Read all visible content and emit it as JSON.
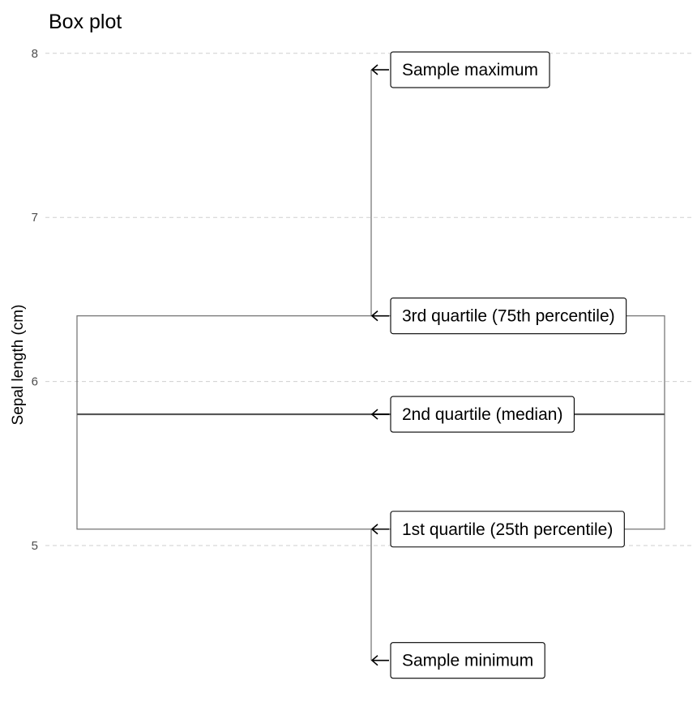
{
  "chart_data": {
    "type": "box",
    "title": "Box plot",
    "xlabel": "",
    "ylabel": "Sepal length (cm)",
    "ylim": [
      4.25,
      8.15
    ],
    "yticks": [
      "5",
      "6",
      "7",
      "8"
    ],
    "grid": "horizontal dashed",
    "legend": "none",
    "stats": {
      "min": 4.3,
      "q1": 5.1,
      "median": 5.8,
      "q3": 6.4,
      "max": 7.9
    },
    "annotations": [
      {
        "stat": "max",
        "label": "Sample maximum"
      },
      {
        "stat": "q3",
        "label": "3rd quartile (75th percentile)"
      },
      {
        "stat": "median",
        "label": "2nd quartile (median)"
      },
      {
        "stat": "q1",
        "label": "1st quartile (25th percentile)"
      },
      {
        "stat": "min",
        "label": "Sample minimum"
      }
    ]
  },
  "colors": {
    "box_outline": "#6e6e6e",
    "median": "#555555",
    "grid": "#cfcfcf",
    "tick_text": "#4d4d4d"
  }
}
